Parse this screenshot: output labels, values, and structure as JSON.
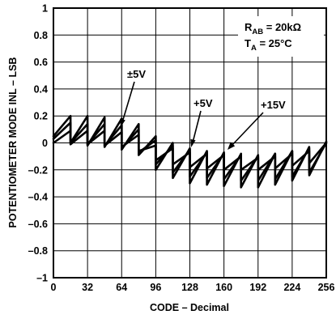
{
  "chart_data": {
    "type": "line",
    "title": "",
    "xlabel": "CODE – Decimal",
    "ylabel": "POTENTIOMETER MODE INL – LSB",
    "xlim": [
      0,
      256
    ],
    "ylim": [
      -1,
      1
    ],
    "xticks": [
      "0",
      "32",
      "64",
      "96",
      "128",
      "160",
      "192",
      "224",
      "256"
    ],
    "yticks": [
      "1",
      "0.8",
      "0.6",
      "0.4",
      "0.2",
      "0",
      "–0.2",
      "–0.4",
      "–0.6",
      "–0.8",
      "–1"
    ],
    "grid": true,
    "condition_lines": [
      {
        "main": "R",
        "sub": "AB",
        "rest": " = 20kΩ"
      },
      {
        "main": "T",
        "sub": "A",
        "rest": " = 25°C"
      }
    ],
    "series_labels": [
      "±5V",
      "+5V",
      "+15V"
    ],
    "series": [
      {
        "x": [
          0,
          16,
          16.01,
          32,
          32.01,
          48,
          48.01,
          64,
          64.01,
          80,
          80.01,
          96,
          96.01,
          112,
          112.01,
          128,
          128.01,
          144,
          144.01,
          160,
          160.01,
          176,
          176.01,
          192,
          192.01,
          208,
          208.01,
          224,
          224.01,
          240,
          240.01,
          256
        ],
        "y": [
          0.0,
          0.09,
          -0.01,
          0.09,
          -0.01,
          0.09,
          -0.02,
          0.08,
          -0.03,
          0.06,
          -0.06,
          -0.02,
          -0.13,
          -0.04,
          -0.16,
          -0.07,
          -0.18,
          -0.08,
          -0.19,
          -0.09,
          -0.2,
          -0.1,
          -0.2,
          -0.11,
          -0.2,
          -0.1,
          -0.19,
          -0.08,
          -0.17,
          -0.06,
          -0.15,
          0.0
        ]
      },
      {
        "x": [
          0,
          16,
          16.01,
          32,
          32.01,
          48,
          48.01,
          64,
          64.01,
          80,
          80.01,
          96,
          96.01,
          112,
          112.01,
          128,
          128.01,
          144,
          144.01,
          160,
          160.01,
          176,
          176.01,
          192,
          192.01,
          208,
          208.01,
          224,
          224.01,
          240,
          240.01,
          256
        ],
        "y": [
          0.03,
          0.15,
          0.0,
          0.14,
          -0.01,
          0.14,
          -0.02,
          0.13,
          -0.04,
          0.1,
          -0.07,
          0.02,
          -0.16,
          -0.02,
          -0.22,
          -0.05,
          -0.25,
          -0.07,
          -0.26,
          -0.08,
          -0.27,
          -0.09,
          -0.28,
          -0.1,
          -0.28,
          -0.08,
          -0.27,
          -0.06,
          -0.25,
          -0.04,
          -0.22,
          0.0
        ]
      },
      {
        "x": [
          0,
          16,
          16.01,
          32,
          32.01,
          48,
          48.01,
          64,
          64.01,
          80,
          80.01,
          96,
          96.01,
          112,
          112.01,
          128,
          128.01,
          144,
          144.01,
          160,
          160.01,
          176,
          176.01,
          192,
          192.01,
          208,
          208.01,
          224,
          224.01,
          240,
          240.01,
          256
        ],
        "y": [
          0.05,
          0.2,
          0.0,
          0.2,
          -0.02,
          0.19,
          -0.03,
          0.18,
          -0.05,
          0.14,
          -0.09,
          0.05,
          -0.2,
          0.0,
          -0.26,
          -0.04,
          -0.3,
          -0.06,
          -0.31,
          -0.07,
          -0.32,
          -0.08,
          -0.33,
          -0.09,
          -0.33,
          -0.08,
          -0.31,
          -0.06,
          -0.28,
          -0.03,
          -0.24,
          0.01
        ]
      }
    ]
  }
}
